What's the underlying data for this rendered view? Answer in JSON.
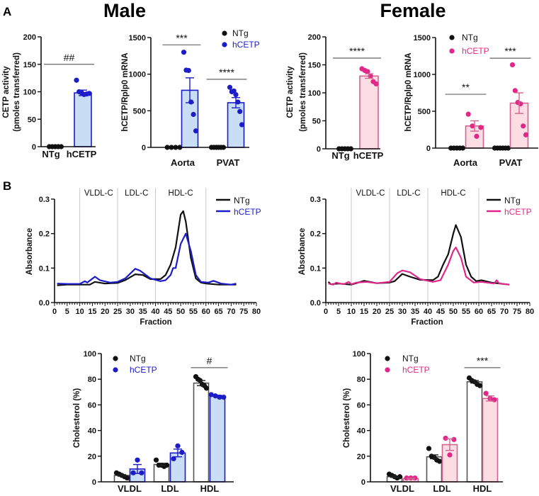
{
  "figure": {
    "panel_a": "A",
    "panel_b": "B",
    "male": "Male",
    "female": "Female"
  },
  "colors": {
    "ntg": "#111111",
    "male_hcetp": "#1c1cc8",
    "male_fill": "#c9ddf5",
    "female_hcetp": "#e0288a",
    "female_fill": "#fbdde3",
    "female_stroke": "#d3638f",
    "ntg_bar": "#555555"
  },
  "chart_data": [
    {
      "id": "male-cetp-activity",
      "type": "bar",
      "ylabel": [
        "CETP activity",
        "(pmoles transferred)"
      ],
      "ylim": [
        0,
        200
      ],
      "yticks": [
        0,
        50,
        100,
        150,
        200
      ],
      "categories": [
        "NTg",
        "hCETP"
      ],
      "theme": "male",
      "bars": [
        {
          "group": "NTg",
          "mean": 0,
          "sem": 0,
          "points": [
            0,
            0,
            0,
            0,
            0
          ]
        },
        {
          "group": "hCETP",
          "mean": 98,
          "sem": 5,
          "points": [
            121,
            100,
            98,
            95,
            96,
            97
          ]
        }
      ],
      "significance": [
        {
          "label": "##",
          "y": 150,
          "from": 0,
          "to": 1
        }
      ]
    },
    {
      "id": "male-hcetp-mrna",
      "type": "bar",
      "ylabel": [
        "hCETP/Rplp0 mRNA"
      ],
      "ylim": [
        0,
        1500
      ],
      "yticks": [
        0,
        500,
        1000,
        1500
      ],
      "categories": [
        "Aorta",
        "PVAT"
      ],
      "theme": "male",
      "legend": [
        "NTg",
        "hCETP"
      ],
      "bars": [
        {
          "group": "NTg",
          "mean": 0,
          "sem": 0,
          "points": [
            0,
            0,
            0,
            0
          ]
        },
        {
          "group": "hCETP",
          "mean": 780,
          "sem": 170,
          "points": [
            1300,
            1055,
            1050,
            620,
            450,
            225
          ]
        },
        {
          "group": "NTg",
          "mean": 0,
          "sem": 0,
          "points": [
            0,
            0,
            0,
            0,
            0,
            0
          ]
        },
        {
          "group": "hCETP",
          "mean": 610,
          "sem": 70,
          "points": [
            820,
            760,
            770,
            720,
            620,
            490,
            310
          ]
        }
      ],
      "significance": [
        {
          "label": "***",
          "y": 1400,
          "from": 0,
          "to": 1
        },
        {
          "label": "****",
          "y": 930,
          "from": 2,
          "to": 3
        }
      ]
    },
    {
      "id": "female-cetp-activity",
      "type": "bar",
      "ylabel": [
        "CETP activity",
        "(pmoles transferred)"
      ],
      "ylim": [
        0,
        200
      ],
      "yticks": [
        0,
        50,
        100,
        150,
        200
      ],
      "categories": [
        "NTg",
        "hCETP"
      ],
      "theme": "female",
      "bars": [
        {
          "group": "NTg",
          "mean": 0,
          "sem": 0,
          "points": [
            0,
            0,
            0,
            0,
            0
          ]
        },
        {
          "group": "hCETP",
          "mean": 130,
          "sem": 4,
          "points": [
            143,
            140,
            138,
            130,
            120,
            116
          ]
        }
      ],
      "significance": [
        {
          "label": "****",
          "y": 162,
          "from": 0,
          "to": 1
        }
      ]
    },
    {
      "id": "female-hcetp-mrna",
      "type": "bar",
      "ylabel": [
        "hCETP/Rplp0 mRNA"
      ],
      "ylim": [
        0,
        1500
      ],
      "yticks": [
        0,
        500,
        1000,
        1500
      ],
      "categories": [
        "Aorta",
        "PVAT"
      ],
      "theme": "female",
      "legend": [
        "NTg",
        "hCETP"
      ],
      "bars": [
        {
          "group": "NTg",
          "mean": 0,
          "sem": 0,
          "points": [
            0,
            0,
            0,
            0,
            0
          ]
        },
        {
          "group": "hCETP",
          "mean": 300,
          "sem": 70,
          "points": [
            460,
            300,
            160,
            280
          ]
        },
        {
          "group": "NTg",
          "mean": 0,
          "sem": 0,
          "points": [
            0,
            0,
            0,
            0,
            0,
            0
          ]
        },
        {
          "group": "hCETP",
          "mean": 610,
          "sem": 140,
          "points": [
            1130,
            780,
            620,
            600,
            300,
            180
          ]
        }
      ],
      "significance": [
        {
          "label": "**",
          "y": 730,
          "from": 0,
          "to": 1
        },
        {
          "label": "***",
          "y": 1220,
          "from": 2,
          "to": 3
        }
      ]
    },
    {
      "id": "male-fplc",
      "type": "line",
      "xlabel": "Fraction",
      "ylabel": "Absorbance",
      "xlim": [
        0,
        80
      ],
      "ylim": [
        0,
        0.3
      ],
      "yticks": [
        "0.0",
        "0.1",
        "0.2",
        "0.3"
      ],
      "xticks": [
        0,
        5,
        10,
        15,
        20,
        25,
        30,
        35,
        40,
        45,
        50,
        55,
        60,
        65,
        70,
        75,
        80
      ],
      "theme": "male",
      "regions": [
        {
          "label": "VLDL-C",
          "from": 10,
          "to": 25
        },
        {
          "label": "LDL-C",
          "from": 25,
          "to": 40
        },
        {
          "label": "HDL-C",
          "from": 40,
          "to": 60
        }
      ],
      "series": [
        {
          "name": "NTg",
          "x": [
            1,
            5,
            10,
            14,
            16,
            20,
            25,
            28,
            32,
            35,
            38,
            42,
            44,
            46,
            48,
            50,
            51,
            52,
            54,
            56,
            58,
            60,
            65,
            72
          ],
          "y": [
            0.05,
            0.052,
            0.052,
            0.052,
            0.06,
            0.055,
            0.057,
            0.065,
            0.082,
            0.08,
            0.068,
            0.068,
            0.08,
            0.11,
            0.16,
            0.255,
            0.265,
            0.235,
            0.13,
            0.07,
            0.058,
            0.055,
            0.052,
            0.052
          ]
        },
        {
          "name": "hCETP",
          "x": [
            1,
            5,
            10,
            12,
            13,
            16,
            18,
            22,
            25,
            28,
            32,
            34,
            38,
            42,
            44,
            46,
            47,
            48,
            50,
            52,
            54,
            56,
            58,
            61,
            63,
            66,
            70,
            72
          ],
          "y": [
            0.055,
            0.054,
            0.054,
            0.062,
            0.058,
            0.075,
            0.065,
            0.058,
            0.06,
            0.07,
            0.098,
            0.092,
            0.07,
            0.062,
            0.065,
            0.08,
            0.1,
            0.1,
            0.17,
            0.2,
            0.15,
            0.08,
            0.06,
            0.058,
            0.063,
            0.055,
            0.052,
            0.055
          ]
        }
      ]
    },
    {
      "id": "female-fplc",
      "type": "line",
      "xlabel": "Fraction",
      "ylabel": "Absorbance",
      "xlim": [
        0,
        80
      ],
      "ylim": [
        0,
        0.3
      ],
      "yticks": [
        "0.0",
        "0.1",
        "0.2",
        "0.3"
      ],
      "xticks": [
        0,
        5,
        10,
        15,
        20,
        25,
        30,
        35,
        40,
        45,
        50,
        55,
        60,
        65,
        70,
        75,
        80
      ],
      "theme": "female",
      "regions": [
        {
          "label": "VLDL-C",
          "from": 10,
          "to": 25
        },
        {
          "label": "LDL-C",
          "from": 25,
          "to": 40
        },
        {
          "label": "HDL-C",
          "from": 40,
          "to": 60
        }
      ],
      "series": [
        {
          "name": "NTg",
          "x": [
            1,
            2,
            5,
            10,
            15,
            20,
            25,
            27,
            30,
            33,
            37,
            42,
            44,
            46,
            48,
            50,
            51,
            53,
            55,
            57,
            59,
            61,
            65,
            72
          ],
          "y": [
            0.06,
            0.053,
            0.055,
            0.052,
            0.063,
            0.056,
            0.058,
            0.062,
            0.083,
            0.075,
            0.066,
            0.065,
            0.075,
            0.11,
            0.14,
            0.2,
            0.225,
            0.19,
            0.11,
            0.075,
            0.062,
            0.065,
            0.058,
            0.052
          ]
        },
        {
          "name": "hCETP",
          "x": [
            1,
            3,
            4,
            7,
            9,
            10,
            12,
            16,
            20,
            25,
            28,
            30,
            33,
            37,
            42,
            45,
            48,
            50,
            51,
            53,
            55,
            58,
            61,
            66,
            67,
            68,
            72
          ],
          "y": [
            0.055,
            0.052,
            0.058,
            0.053,
            0.06,
            0.053,
            0.058,
            0.06,
            0.056,
            0.06,
            0.085,
            0.093,
            0.088,
            0.068,
            0.06,
            0.065,
            0.11,
            0.15,
            0.16,
            0.13,
            0.075,
            0.058,
            0.06,
            0.055,
            0.065,
            0.055,
            0.052
          ]
        }
      ]
    },
    {
      "id": "male-cholesterol",
      "type": "bar",
      "ylabel": [
        "Cholesterol (%)"
      ],
      "ylim": [
        0,
        100
      ],
      "yticks": [
        0,
        20,
        40,
        60,
        80,
        100
      ],
      "categories": [
        "VLDL",
        "LDL",
        "HDL"
      ],
      "theme": "male",
      "legend": [
        "NTg",
        "hCETP"
      ],
      "bars": [
        {
          "group": "NTg",
          "mean": 5,
          "sem": 0.6,
          "points": [
            7,
            6,
            5,
            4,
            3
          ]
        },
        {
          "group": "hCETP",
          "mean": 10,
          "sem": 3.5,
          "points": [
            7,
            17,
            7
          ]
        },
        {
          "group": "NTg",
          "mean": 13.5,
          "sem": 1,
          "points": [
            17,
            13,
            13,
            12,
            13
          ]
        },
        {
          "group": "hCETP",
          "mean": 22.5,
          "sem": 3,
          "points": [
            18,
            28,
            23
          ]
        },
        {
          "group": "NTg",
          "mean": 77,
          "sem": 2,
          "points": [
            82,
            80,
            79,
            76,
            75,
            73
          ]
        },
        {
          "group": "hCETP",
          "mean": 67,
          "sem": 0.5,
          "points": [
            68,
            67,
            66,
            66
          ]
        }
      ],
      "significance": [
        {
          "label": "#",
          "y": 89,
          "from": 4,
          "to": 5
        }
      ]
    },
    {
      "id": "female-cholesterol",
      "type": "bar",
      "ylabel": [
        "Cholesterol (%)"
      ],
      "ylim": [
        0,
        100
      ],
      "yticks": [
        0,
        20,
        40,
        60,
        80,
        100
      ],
      "categories": [
        "VLDL",
        "LDL",
        "HDL"
      ],
      "theme": "female",
      "legend": [
        "NTg",
        "hCETP"
      ],
      "bars": [
        {
          "group": "NTg",
          "mean": 4,
          "sem": 0.6,
          "points": [
            6,
            5,
            4,
            3,
            4
          ]
        },
        {
          "group": "hCETP",
          "mean": 2.5,
          "sem": 0.3,
          "points": [
            3,
            3,
            3
          ]
        },
        {
          "group": "NTg",
          "mean": 19.5,
          "sem": 1.5,
          "points": [
            26,
            20,
            19,
            17,
            16
          ]
        },
        {
          "group": "hCETP",
          "mean": 29,
          "sem": 4.5,
          "points": [
            34,
            21,
            33
          ]
        },
        {
          "group": "NTg",
          "mean": 78,
          "sem": 1,
          "points": [
            81,
            79,
            78,
            76,
            75
          ]
        },
        {
          "group": "hCETP",
          "mean": 65,
          "sem": 2,
          "points": [
            69,
            65,
            64
          ]
        }
      ],
      "significance": [
        {
          "label": "***",
          "y": 89,
          "from": 4,
          "to": 5
        }
      ]
    }
  ]
}
